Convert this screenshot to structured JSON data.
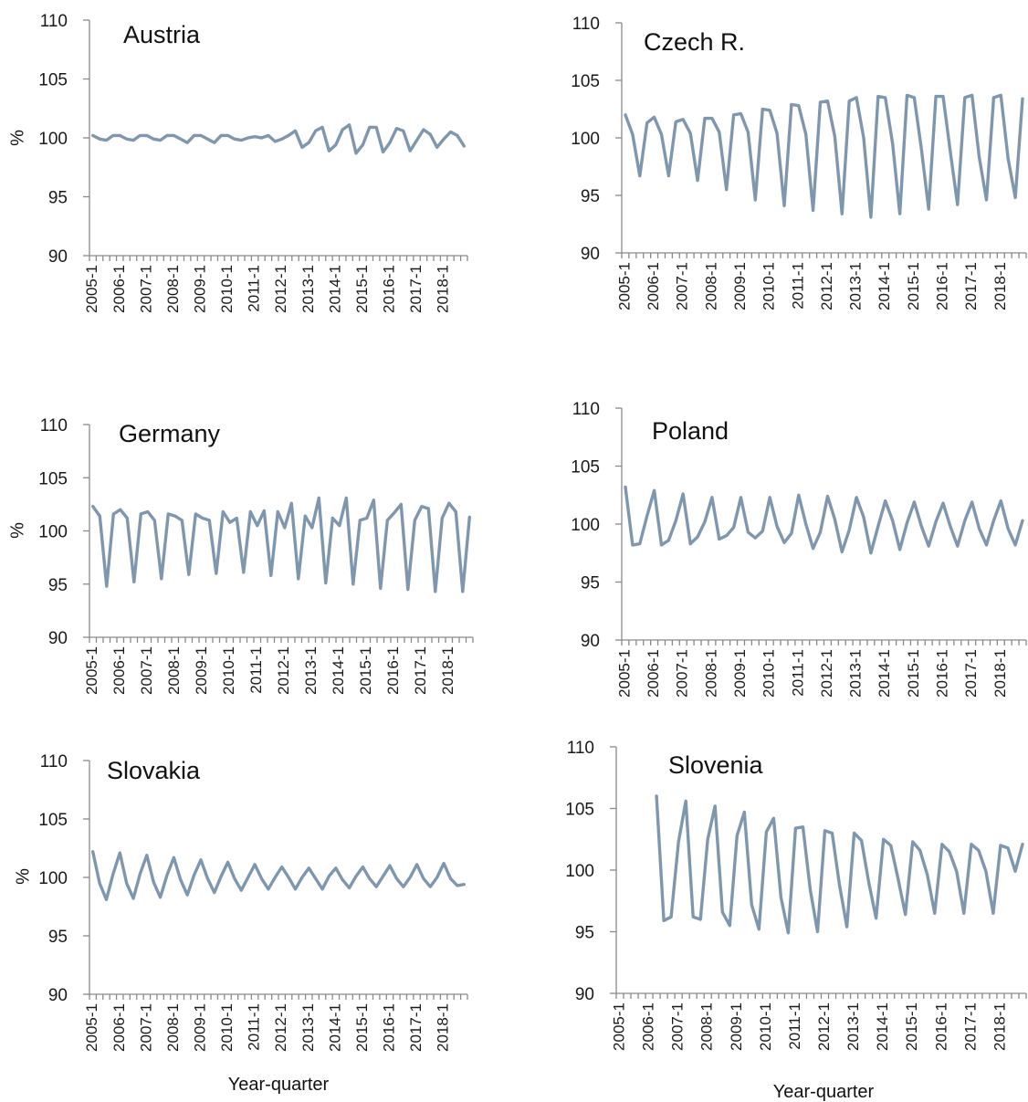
{
  "color": "#7f97ae",
  "chart_data": [
    {
      "type": "line",
      "title": "Austria",
      "ylabel": "%",
      "xlabel": "",
      "ylim": [
        90,
        110
      ],
      "yticks": [
        90,
        95,
        100,
        105,
        110
      ],
      "tick_labels": [
        "2005-1",
        "2006-1",
        "2007-1",
        "2008-1",
        "2009-1",
        "2010-1",
        "2011-1",
        "2012-1",
        "2013-1",
        "2014-1",
        "2015-1",
        "2016-1",
        "2017-1",
        "2018-1"
      ],
      "x": [
        "2005-1",
        "2005-2",
        "2005-3",
        "2005-4",
        "2006-1",
        "2006-2",
        "2006-3",
        "2006-4",
        "2007-1",
        "2007-2",
        "2007-3",
        "2007-4",
        "2008-1",
        "2008-2",
        "2008-3",
        "2008-4",
        "2009-1",
        "2009-2",
        "2009-3",
        "2009-4",
        "2010-1",
        "2010-2",
        "2010-3",
        "2010-4",
        "2011-1",
        "2011-2",
        "2011-3",
        "2011-4",
        "2012-1",
        "2012-2",
        "2012-3",
        "2012-4",
        "2013-1",
        "2013-2",
        "2013-3",
        "2013-4",
        "2014-1",
        "2014-2",
        "2014-3",
        "2014-4",
        "2015-1",
        "2015-2",
        "2015-3",
        "2015-4",
        "2016-1",
        "2016-2",
        "2016-3",
        "2016-4",
        "2017-1",
        "2017-2",
        "2017-3",
        "2017-4",
        "2018-1",
        "2018-2",
        "2018-3",
        "2018-4"
      ],
      "values": [
        100.2,
        99.9,
        99.8,
        100.2,
        100.2,
        99.9,
        99.8,
        100.2,
        100.2,
        99.9,
        99.8,
        100.2,
        100.2,
        99.9,
        99.6,
        100.2,
        100.2,
        99.9,
        99.6,
        100.2,
        100.2,
        99.9,
        99.8,
        100.0,
        100.1,
        100.0,
        100.2,
        99.7,
        99.9,
        100.2,
        100.6,
        99.2,
        99.6,
        100.6,
        100.9,
        98.9,
        99.4,
        100.7,
        101.1,
        98.7,
        99.4,
        100.9,
        100.9,
        98.8,
        99.6,
        100.8,
        100.6,
        98.9,
        99.8,
        100.7,
        100.3,
        99.2,
        99.9,
        100.5,
        100.2,
        99.3
      ]
    },
    {
      "type": "line",
      "title": "Czech R.",
      "ylabel": "",
      "xlabel": "",
      "ylim": [
        90,
        110
      ],
      "yticks": [
        90,
        95,
        100,
        105,
        110
      ],
      "tick_labels": [
        "2005-1",
        "2006-1",
        "2007-1",
        "2008-1",
        "2009-1",
        "2010-1",
        "2011-1",
        "2012-1",
        "2013-1",
        "2014-1",
        "2015-1",
        "2016-1",
        "2017-1",
        "2018-1"
      ],
      "x": [
        "2005-1",
        "2005-2",
        "2005-3",
        "2005-4",
        "2006-1",
        "2006-2",
        "2006-3",
        "2006-4",
        "2007-1",
        "2007-2",
        "2007-3",
        "2007-4",
        "2008-1",
        "2008-2",
        "2008-3",
        "2008-4",
        "2009-1",
        "2009-2",
        "2009-3",
        "2009-4",
        "2010-1",
        "2010-2",
        "2010-3",
        "2010-4",
        "2011-1",
        "2011-2",
        "2011-3",
        "2011-4",
        "2012-1",
        "2012-2",
        "2012-3",
        "2012-4",
        "2013-1",
        "2013-2",
        "2013-3",
        "2013-4",
        "2014-1",
        "2014-2",
        "2014-3",
        "2014-4",
        "2015-1",
        "2015-2",
        "2015-3",
        "2015-4",
        "2016-1",
        "2016-2",
        "2016-3",
        "2016-4",
        "2017-1",
        "2017-2",
        "2017-3",
        "2017-4",
        "2018-1",
        "2018-2",
        "2018-3",
        "2018-4"
      ],
      "values": [
        102.0,
        100.3,
        96.7,
        101.3,
        101.8,
        100.3,
        96.7,
        101.4,
        101.6,
        100.4,
        96.3,
        101.7,
        101.7,
        100.5,
        95.5,
        102.0,
        102.1,
        100.5,
        94.6,
        102.5,
        102.4,
        100.4,
        94.1,
        102.9,
        102.8,
        100.3,
        93.7,
        103.1,
        103.2,
        100.1,
        93.4,
        103.2,
        103.5,
        100.0,
        93.1,
        103.6,
        103.5,
        99.5,
        93.4,
        103.7,
        103.5,
        99.0,
        93.8,
        103.6,
        103.6,
        98.8,
        94.2,
        103.5,
        103.7,
        98.3,
        94.6,
        103.5,
        103.7,
        98.2,
        94.8,
        103.4
      ]
    },
    {
      "type": "line",
      "title": "Germany",
      "ylabel": "%",
      "xlabel": "",
      "ylim": [
        90,
        110
      ],
      "yticks": [
        90,
        95,
        100,
        105,
        110
      ],
      "tick_labels": [
        "2005-1",
        "2006-1",
        "2007-1",
        "2008-1",
        "2009-1",
        "2010-1",
        "2011-1",
        "2012-1",
        "2013-1",
        "2014-1",
        "2015-1",
        "2016-1",
        "2017-1",
        "2018-1"
      ],
      "x": [
        "2005-1",
        "2005-2",
        "2005-3",
        "2005-4",
        "2006-1",
        "2006-2",
        "2006-3",
        "2006-4",
        "2007-1",
        "2007-2",
        "2007-3",
        "2007-4",
        "2008-1",
        "2008-2",
        "2008-3",
        "2008-4",
        "2009-1",
        "2009-2",
        "2009-3",
        "2009-4",
        "2010-1",
        "2010-2",
        "2010-3",
        "2010-4",
        "2011-1",
        "2011-2",
        "2011-3",
        "2011-4",
        "2012-1",
        "2012-2",
        "2012-3",
        "2012-4",
        "2013-1",
        "2013-2",
        "2013-3",
        "2013-4",
        "2014-1",
        "2014-2",
        "2014-3",
        "2014-4",
        "2015-1",
        "2015-2",
        "2015-3",
        "2015-4",
        "2016-1",
        "2016-2",
        "2016-3",
        "2016-4",
        "2017-1",
        "2017-2",
        "2017-3",
        "2017-4",
        "2018-1",
        "2018-2",
        "2018-3",
        "2018-4"
      ],
      "values": [
        102.3,
        101.4,
        94.8,
        101.6,
        102.0,
        101.2,
        95.2,
        101.6,
        101.8,
        101.0,
        95.5,
        101.6,
        101.4,
        101.0,
        95.9,
        101.6,
        101.2,
        101.0,
        96.0,
        101.8,
        100.8,
        101.2,
        96.1,
        101.8,
        100.5,
        101.9,
        95.8,
        101.8,
        100.3,
        102.6,
        95.5,
        101.4,
        100.3,
        103.1,
        95.1,
        101.2,
        100.5,
        103.1,
        95.0,
        101.0,
        101.2,
        102.9,
        94.6,
        101.0,
        101.7,
        102.5,
        94.5,
        101.0,
        102.3,
        102.1,
        94.3,
        101.2,
        102.6,
        101.8,
        94.3,
        101.3
      ]
    },
    {
      "type": "line",
      "title": "Poland",
      "ylabel": "",
      "xlabel": "",
      "ylim": [
        90,
        110
      ],
      "yticks": [
        90,
        95,
        100,
        105,
        110
      ],
      "tick_labels": [
        "2005-1",
        "2006-1",
        "2007-1",
        "2008-1",
        "2009-1",
        "2010-1",
        "2011-1",
        "2012-1",
        "2013-1",
        "2014-1",
        "2015-1",
        "2016-1",
        "2017-1",
        "2018-1"
      ],
      "x": [
        "2005-1",
        "2005-2",
        "2005-3",
        "2005-4",
        "2006-1",
        "2006-2",
        "2006-3",
        "2006-4",
        "2007-1",
        "2007-2",
        "2007-3",
        "2007-4",
        "2008-1",
        "2008-2",
        "2008-3",
        "2008-4",
        "2009-1",
        "2009-2",
        "2009-3",
        "2009-4",
        "2010-1",
        "2010-2",
        "2010-3",
        "2010-4",
        "2011-1",
        "2011-2",
        "2011-3",
        "2011-4",
        "2012-1",
        "2012-2",
        "2012-3",
        "2012-4",
        "2013-1",
        "2013-2",
        "2013-3",
        "2013-4",
        "2014-1",
        "2014-2",
        "2014-3",
        "2014-4",
        "2015-1",
        "2015-2",
        "2015-3",
        "2015-4",
        "2016-1",
        "2016-2",
        "2016-3",
        "2016-4",
        "2017-1",
        "2017-2",
        "2017-3",
        "2017-4",
        "2018-1",
        "2018-2",
        "2018-3",
        "2018-4"
      ],
      "values": [
        103.2,
        98.2,
        98.3,
        100.7,
        102.9,
        98.2,
        98.6,
        100.3,
        102.6,
        98.3,
        98.9,
        100.2,
        102.3,
        98.7,
        99.0,
        99.7,
        102.3,
        99.3,
        98.8,
        99.4,
        102.3,
        99.8,
        98.4,
        99.2,
        102.5,
        100.0,
        97.9,
        99.3,
        102.4,
        100.4,
        97.6,
        99.5,
        102.3,
        100.6,
        97.5,
        99.8,
        102.0,
        100.3,
        97.8,
        100.1,
        101.9,
        99.8,
        98.1,
        100.2,
        101.8,
        99.8,
        98.1,
        100.3,
        101.9,
        99.6,
        98.2,
        100.3,
        102.0,
        99.6,
        98.2,
        100.3
      ]
    },
    {
      "type": "line",
      "title": "Slovakia",
      "ylabel": "%",
      "xlabel": "Year-quarter",
      "ylim": [
        90,
        110
      ],
      "yticks": [
        90,
        95,
        100,
        105,
        110
      ],
      "tick_labels": [
        "2005-1",
        "2006-1",
        "2007-1",
        "2008-1",
        "2009-1",
        "2010-1",
        "2011-1",
        "2012-1",
        "2013-1",
        "2014-1",
        "2015-1",
        "2016-1",
        "2017-1",
        "2018-1"
      ],
      "x": [
        "2005-1",
        "2005-2",
        "2005-3",
        "2005-4",
        "2006-1",
        "2006-2",
        "2006-3",
        "2006-4",
        "2007-1",
        "2007-2",
        "2007-3",
        "2007-4",
        "2008-1",
        "2008-2",
        "2008-3",
        "2008-4",
        "2009-1",
        "2009-2",
        "2009-3",
        "2009-4",
        "2010-1",
        "2010-2",
        "2010-3",
        "2010-4",
        "2011-1",
        "2011-2",
        "2011-3",
        "2011-4",
        "2012-1",
        "2012-2",
        "2012-3",
        "2012-4",
        "2013-1",
        "2013-2",
        "2013-3",
        "2013-4",
        "2014-1",
        "2014-2",
        "2014-3",
        "2014-4",
        "2015-1",
        "2015-2",
        "2015-3",
        "2015-4",
        "2016-1",
        "2016-2",
        "2016-3",
        "2016-4",
        "2017-1",
        "2017-2",
        "2017-3",
        "2017-4",
        "2018-1",
        "2018-2",
        "2018-3",
        "2018-4"
      ],
      "values": [
        102.2,
        99.5,
        98.1,
        100.3,
        102.1,
        99.5,
        98.2,
        100.3,
        101.9,
        99.6,
        98.3,
        100.2,
        101.7,
        99.8,
        98.5,
        100.2,
        101.5,
        99.9,
        98.7,
        100.1,
        101.3,
        99.9,
        98.9,
        100.0,
        101.1,
        99.9,
        99.0,
        100.0,
        100.9,
        100.0,
        99.0,
        100.0,
        100.8,
        99.9,
        99.0,
        100.1,
        100.8,
        99.8,
        99.1,
        100.1,
        100.9,
        99.9,
        99.2,
        100.1,
        101.0,
        99.9,
        99.2,
        100.0,
        101.1,
        99.9,
        99.2,
        100.0,
        101.2,
        99.9,
        99.3,
        99.4
      ]
    },
    {
      "type": "line",
      "title": "Slovenia",
      "ylabel": "",
      "xlabel": "Year-quarter",
      "ylim": [
        90,
        110
      ],
      "yticks": [
        90,
        95,
        100,
        105,
        110
      ],
      "tick_labels": [
        "2005-1",
        "2006-1",
        "2007-1",
        "2008-1",
        "2009-1",
        "2010-1",
        "2011-1",
        "2012-1",
        "2013-1",
        "2014-1",
        "2015-1",
        "2016-1",
        "2017-1",
        "2018-1"
      ],
      "x": [
        "2005-1",
        "2005-2",
        "2005-3",
        "2005-4",
        "2006-1",
        "2006-2",
        "2006-3",
        "2006-4",
        "2007-1",
        "2007-2",
        "2007-3",
        "2007-4",
        "2008-1",
        "2008-2",
        "2008-3",
        "2008-4",
        "2009-1",
        "2009-2",
        "2009-3",
        "2009-4",
        "2010-1",
        "2010-2",
        "2010-3",
        "2010-4",
        "2011-1",
        "2011-2",
        "2011-3",
        "2011-4",
        "2012-1",
        "2012-2",
        "2012-3",
        "2012-4",
        "2013-1",
        "2013-2",
        "2013-3",
        "2013-4",
        "2014-1",
        "2014-2",
        "2014-3",
        "2014-4",
        "2015-1",
        "2015-2",
        "2015-3",
        "2015-4",
        "2016-1",
        "2016-2",
        "2016-3",
        "2016-4",
        "2017-1",
        "2017-2",
        "2017-3",
        "2017-4",
        "2018-1",
        "2018-2",
        "2018-3",
        "2018-4"
      ],
      "values": [
        null,
        null,
        null,
        null,
        null,
        106.0,
        95.9,
        96.2,
        102.3,
        105.6,
        96.2,
        96.0,
        102.5,
        105.2,
        96.6,
        95.5,
        102.8,
        104.7,
        97.2,
        95.2,
        103.1,
        104.2,
        97.8,
        94.9,
        103.4,
        103.5,
        98.4,
        95.0,
        103.2,
        103.0,
        98.8,
        95.4,
        103.0,
        102.4,
        99.0,
        96.1,
        102.5,
        102.0,
        99.3,
        96.4,
        102.3,
        101.6,
        99.6,
        96.5,
        102.1,
        101.5,
        99.9,
        96.5,
        102.1,
        101.6,
        99.9,
        96.5,
        102.0,
        101.8,
        99.9,
        102.1
      ]
    }
  ]
}
